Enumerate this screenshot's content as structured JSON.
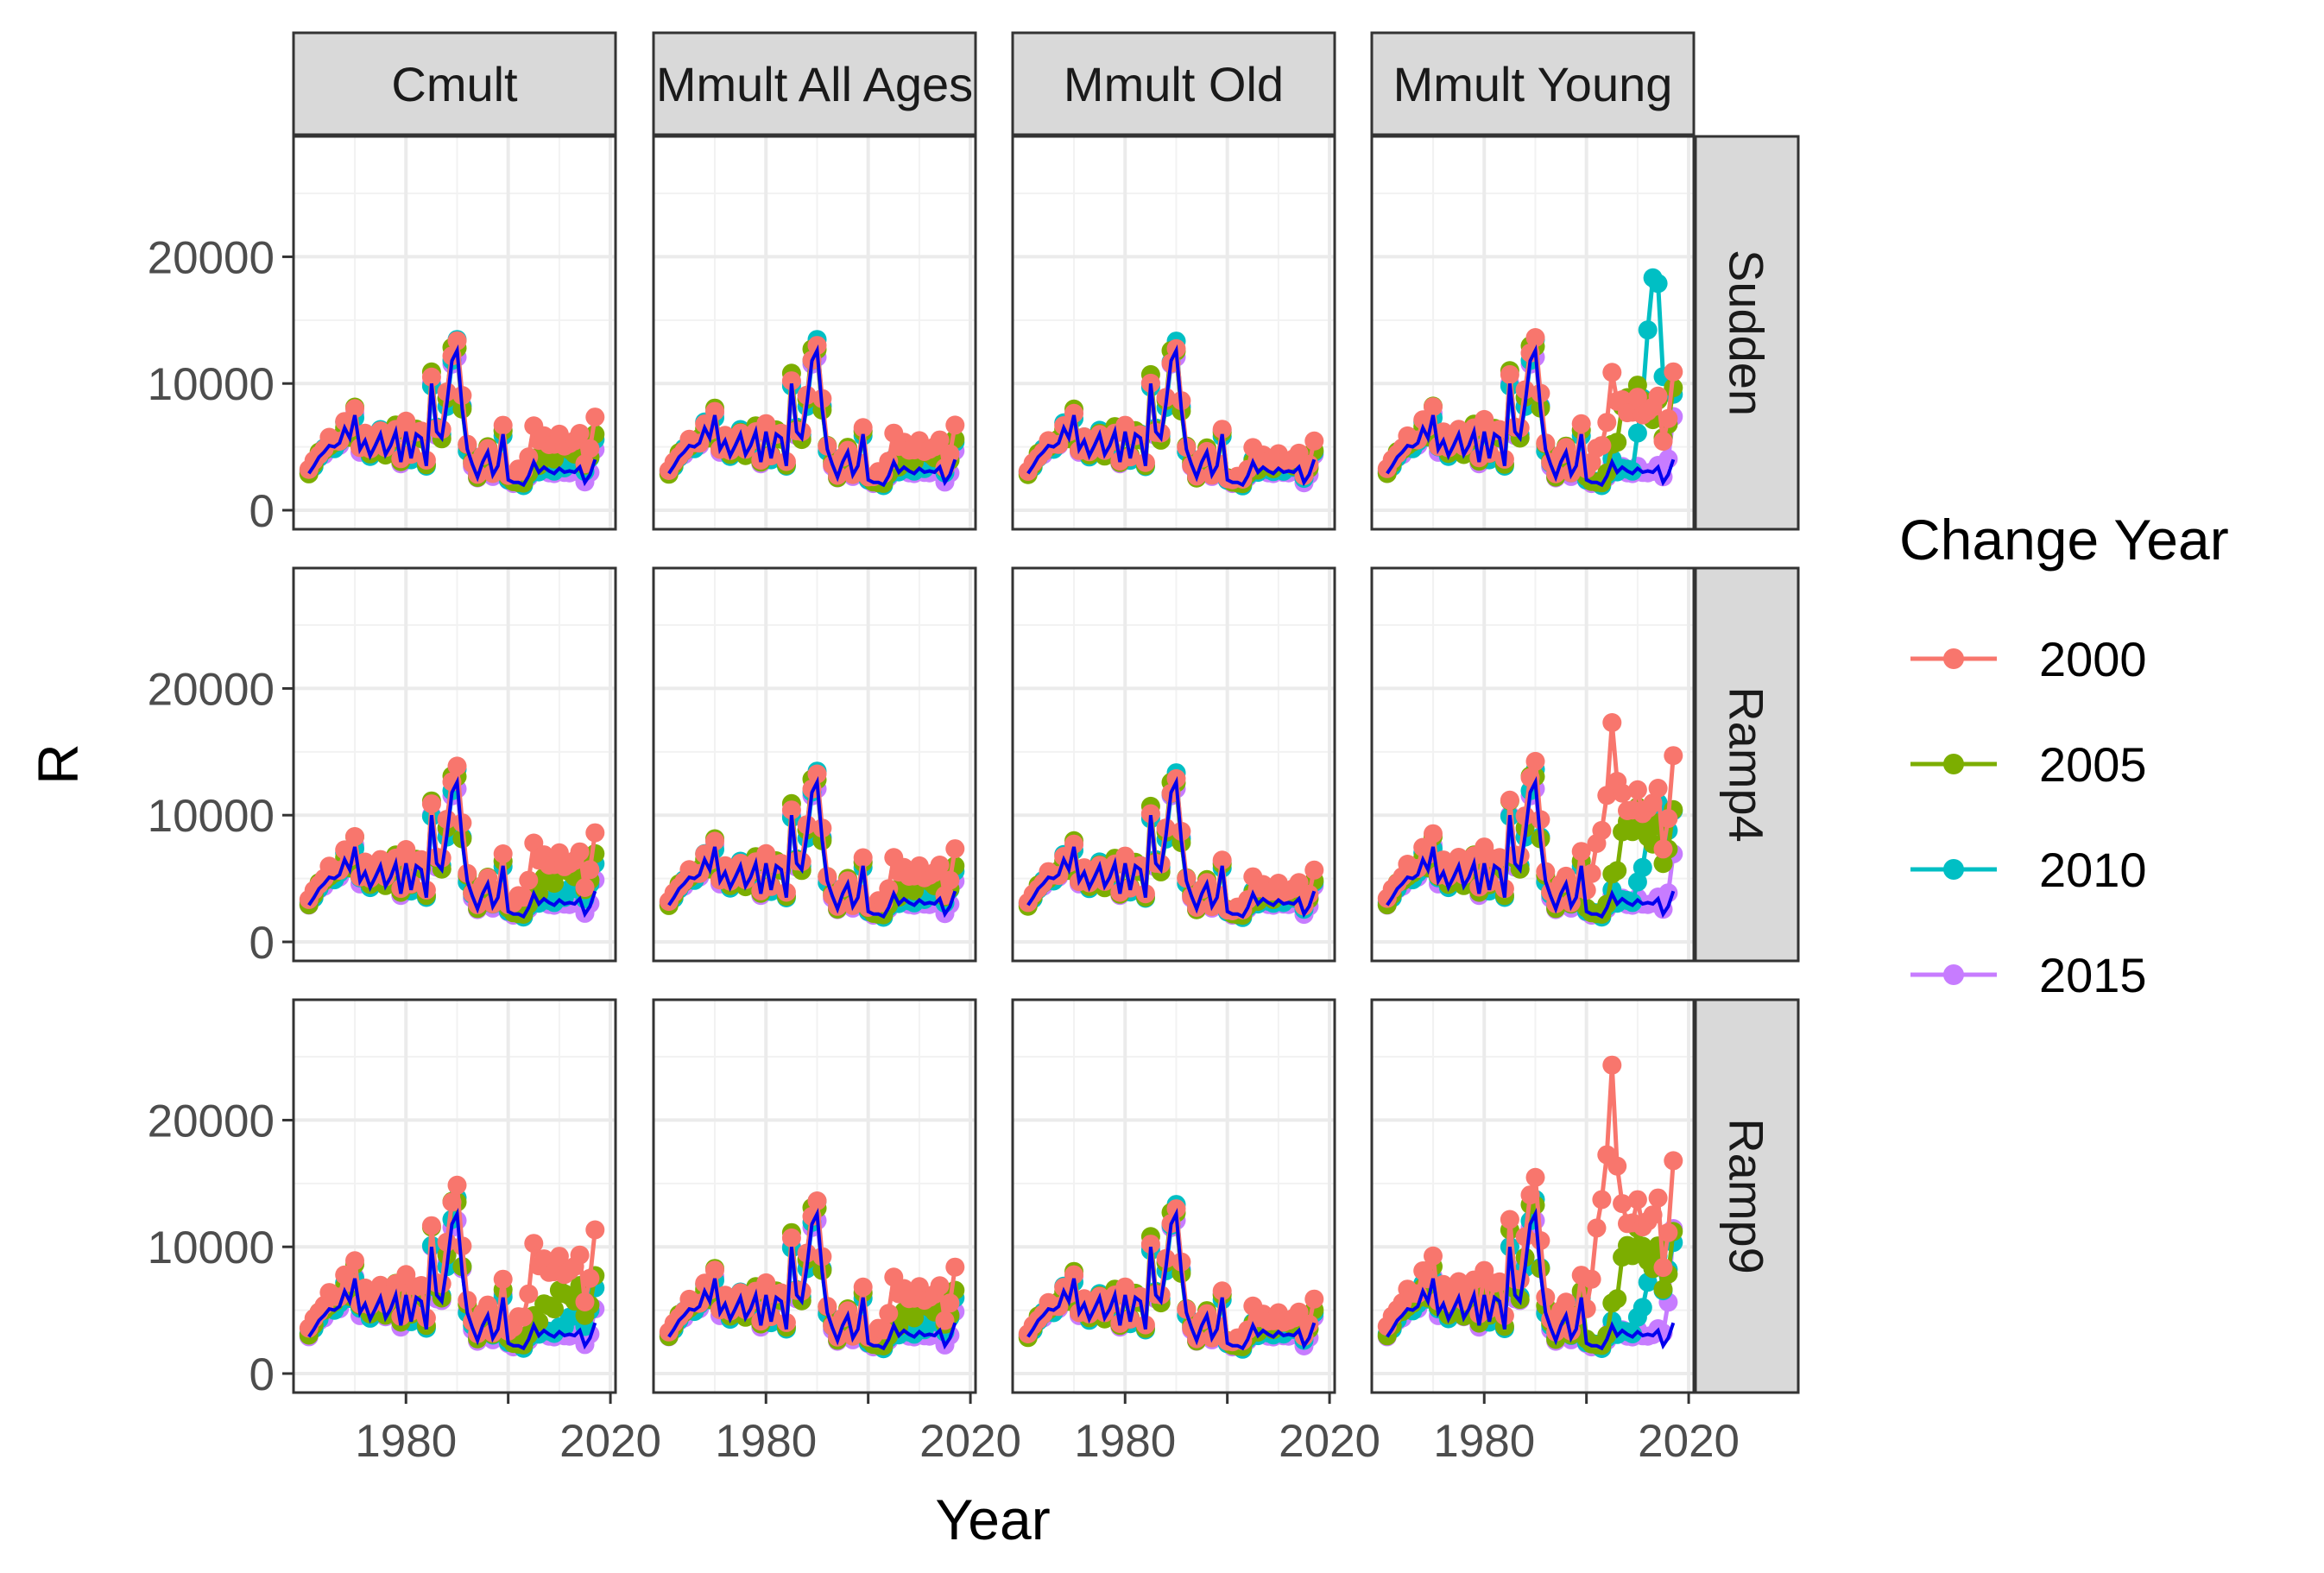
{
  "chart_data": {
    "type": "line",
    "facet_columns": [
      "Cmult",
      "Mmult All Ages",
      "Mmult Old",
      "Mmult Young"
    ],
    "facet_rows": [
      "Sudden",
      "Ramp4",
      "Ramp9"
    ],
    "xlabel": "Year",
    "ylabel": "R",
    "x_ticks": [
      1980,
      2000,
      2020
    ],
    "x_tick_labels": [
      "1980",
      "",
      "2020"
    ],
    "xlim": [
      1958,
      2021
    ],
    "y_ticks": [
      0,
      10000,
      20000
    ],
    "ylim": [
      -1500,
      29500
    ],
    "grid": true,
    "legend": {
      "title": "Change Year",
      "position": "right",
      "entries": [
        {
          "label": "2000",
          "color": "#F8766D"
        },
        {
          "label": "2005",
          "color": "#7CAE00"
        },
        {
          "label": "2010",
          "color": "#00BFC4"
        },
        {
          "label": "2015",
          "color": "#C77CFF"
        }
      ]
    },
    "baseline": {
      "color": "#0000EE",
      "years_start": 1961,
      "values": [
        2900,
        3500,
        4200,
        4600,
        5100,
        5000,
        5300,
        6500,
        5700,
        7500,
        4800,
        5500,
        4300,
        5100,
        6000,
        4400,
        5100,
        6200,
        3800,
        6200,
        4100,
        6000,
        5700,
        3500,
        10000,
        6200,
        5700,
        8400,
        11800,
        12600,
        8000,
        4800,
        3600,
        2600,
        3800,
        4600,
        2800,
        3500,
        6000,
        2400,
        2200,
        2200,
        2000,
        2700,
        3800,
        3000,
        3400,
        3100,
        2900,
        3300,
        3000,
        3100,
        3000,
        3400,
        2200,
        2800,
        4000
      ]
    },
    "series_colors": {
      "2000": "#F8766D",
      "2005": "#7CAE00",
      "2010": "#00BFC4",
      "2015": "#C77CFF"
    },
    "panel_params": {
      "Cmult": {
        "Sudden": {
          "2000": {
            "pre": 1.08,
            "post": 1.75,
            "spike": 1.0
          },
          "2005": {
            "pre": 1.04,
            "post": 1.55,
            "spike": 1.0
          },
          "2010": {
            "pre": 1.02,
            "post": 1.4,
            "spike": 1.0
          },
          "2015": {
            "pre": 1.0,
            "post": 1.3,
            "spike": 1.0
          }
        },
        "Ramp4": {
          "2000": {
            "pre": 1.12,
            "post": 2.05,
            "spike": 1.0
          },
          "2005": {
            "pre": 1.06,
            "post": 1.8,
            "spike": 1.0
          },
          "2010": {
            "pre": 1.03,
            "post": 1.55,
            "spike": 1.0
          },
          "2015": {
            "pre": 1.0,
            "post": 1.35,
            "spike": 1.0
          }
        },
        "Ramp9": {
          "2000": {
            "pre": 1.2,
            "post": 2.7,
            "spike": 1.0
          },
          "2005": {
            "pre": 1.1,
            "post": 2.0,
            "spike": 1.0
          },
          "2010": {
            "pre": 1.05,
            "post": 1.7,
            "spike": 1.0
          },
          "2015": {
            "pre": 1.0,
            "post": 1.45,
            "spike": 1.0
          }
        }
      },
      "Mmult All Ages": {
        "Sudden": {
          "2000": {
            "pre": 1.05,
            "post": 1.6,
            "spike": 1.0
          },
          "2005": {
            "pre": 1.03,
            "post": 1.45,
            "spike": 1.0
          },
          "2010": {
            "pre": 1.02,
            "post": 1.35,
            "spike": 1.0
          },
          "2015": {
            "pre": 1.0,
            "post": 1.25,
            "spike": 1.0
          }
        },
        "Ramp4": {
          "2000": {
            "pre": 1.07,
            "post": 1.75,
            "spike": 1.0
          },
          "2005": {
            "pre": 1.04,
            "post": 1.55,
            "spike": 1.0
          },
          "2010": {
            "pre": 1.02,
            "post": 1.4,
            "spike": 1.0
          },
          "2015": {
            "pre": 1.0,
            "post": 1.3,
            "spike": 1.0
          }
        },
        "Ramp9": {
          "2000": {
            "pre": 1.1,
            "post": 2.0,
            "spike": 1.0
          },
          "2005": {
            "pre": 1.06,
            "post": 1.7,
            "spike": 1.0
          },
          "2010": {
            "pre": 1.03,
            "post": 1.5,
            "spike": 1.0
          },
          "2015": {
            "pre": 1.0,
            "post": 1.35,
            "spike": 1.0
          }
        }
      },
      "Mmult Old": {
        "Sudden": {
          "2000": {
            "pre": 1.03,
            "post": 1.3,
            "spike": 1.0
          },
          "2005": {
            "pre": 1.02,
            "post": 1.22,
            "spike": 1.0
          },
          "2010": {
            "pre": 1.01,
            "post": 1.15,
            "spike": 1.0
          },
          "2015": {
            "pre": 1.0,
            "post": 1.1,
            "spike": 1.0
          }
        },
        "Ramp4": {
          "2000": {
            "pre": 1.04,
            "post": 1.35,
            "spike": 1.0
          },
          "2005": {
            "pre": 1.02,
            "post": 1.25,
            "spike": 1.0
          },
          "2010": {
            "pre": 1.01,
            "post": 1.18,
            "spike": 1.0
          },
          "2015": {
            "pre": 1.0,
            "post": 1.12,
            "spike": 1.0
          }
        },
        "Ramp9": {
          "2000": {
            "pre": 1.05,
            "post": 1.4,
            "spike": 1.0
          },
          "2005": {
            "pre": 1.03,
            "post": 1.3,
            "spike": 1.0
          },
          "2010": {
            "pre": 1.01,
            "post": 1.2,
            "spike": 1.0
          },
          "2015": {
            "pre": 1.0,
            "post": 1.14,
            "spike": 1.0
          }
        }
      },
      "Mmult Young": {
        "Sudden": {
          "2000": {
            "pre": 1.1,
            "post": 2.6,
            "spike": 1.2
          },
          "2005": {
            "pre": 1.05,
            "post": 2.5,
            "spike": 1.4
          },
          "2010": {
            "pre": 1.02,
            "post": 2.3,
            "spike": 3.2
          },
          "2015": {
            "pre": 1.0,
            "post": 1.9,
            "spike": 1.3
          }
        },
        "Ramp4": {
          "2000": {
            "pre": 1.15,
            "post": 3.5,
            "spike": 1.6
          },
          "2005": {
            "pre": 1.06,
            "post": 2.7,
            "spike": 1.4
          },
          "2010": {
            "pre": 1.03,
            "post": 2.6,
            "spike": 1.6
          },
          "2015": {
            "pre": 1.0,
            "post": 1.9,
            "spike": 1.2
          }
        },
        "Ramp9": {
          "2000": {
            "pre": 1.25,
            "post": 4.0,
            "spike": 2.2
          },
          "2005": {
            "pre": 1.08,
            "post": 2.9,
            "spike": 1.4
          },
          "2010": {
            "pre": 1.04,
            "post": 2.6,
            "spike": 1.3
          },
          "2015": {
            "pre": 1.0,
            "post": 3.0,
            "spike": 1.5
          }
        }
      }
    }
  }
}
